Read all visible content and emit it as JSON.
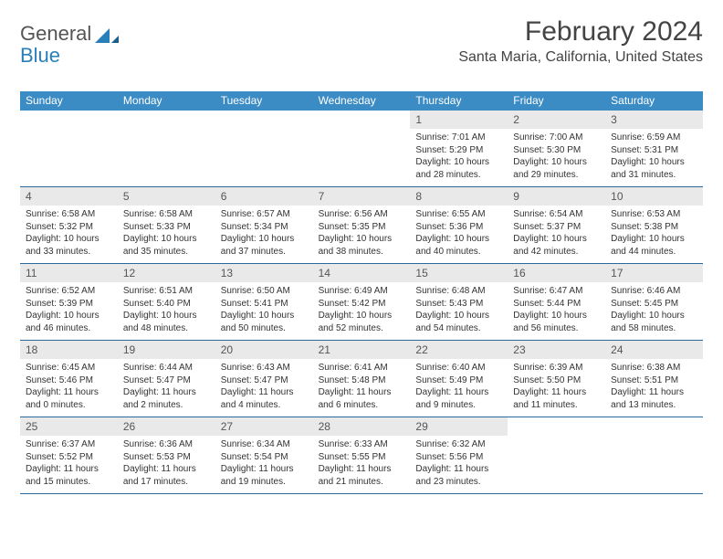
{
  "logo": {
    "text1": "General",
    "text2": "Blue"
  },
  "title": "February 2024",
  "location": "Santa Maria, California, United States",
  "colors": {
    "header_bg": "#3b8bc4",
    "header_fg": "#ffffff",
    "day_number_bg": "#e9e9e9",
    "week_border": "#2a6a9a",
    "logo_gray": "#555555",
    "logo_blue": "#2a7fba"
  },
  "day_headers": [
    "Sunday",
    "Monday",
    "Tuesday",
    "Wednesday",
    "Thursday",
    "Friday",
    "Saturday"
  ],
  "weeks": [
    [
      null,
      null,
      null,
      null,
      {
        "n": "1",
        "sunrise": "7:01 AM",
        "sunset": "5:29 PM",
        "daylight": "10 hours and 28 minutes."
      },
      {
        "n": "2",
        "sunrise": "7:00 AM",
        "sunset": "5:30 PM",
        "daylight": "10 hours and 29 minutes."
      },
      {
        "n": "3",
        "sunrise": "6:59 AM",
        "sunset": "5:31 PM",
        "daylight": "10 hours and 31 minutes."
      }
    ],
    [
      {
        "n": "4",
        "sunrise": "6:58 AM",
        "sunset": "5:32 PM",
        "daylight": "10 hours and 33 minutes."
      },
      {
        "n": "5",
        "sunrise": "6:58 AM",
        "sunset": "5:33 PM",
        "daylight": "10 hours and 35 minutes."
      },
      {
        "n": "6",
        "sunrise": "6:57 AM",
        "sunset": "5:34 PM",
        "daylight": "10 hours and 37 minutes."
      },
      {
        "n": "7",
        "sunrise": "6:56 AM",
        "sunset": "5:35 PM",
        "daylight": "10 hours and 38 minutes."
      },
      {
        "n": "8",
        "sunrise": "6:55 AM",
        "sunset": "5:36 PM",
        "daylight": "10 hours and 40 minutes."
      },
      {
        "n": "9",
        "sunrise": "6:54 AM",
        "sunset": "5:37 PM",
        "daylight": "10 hours and 42 minutes."
      },
      {
        "n": "10",
        "sunrise": "6:53 AM",
        "sunset": "5:38 PM",
        "daylight": "10 hours and 44 minutes."
      }
    ],
    [
      {
        "n": "11",
        "sunrise": "6:52 AM",
        "sunset": "5:39 PM",
        "daylight": "10 hours and 46 minutes."
      },
      {
        "n": "12",
        "sunrise": "6:51 AM",
        "sunset": "5:40 PM",
        "daylight": "10 hours and 48 minutes."
      },
      {
        "n": "13",
        "sunrise": "6:50 AM",
        "sunset": "5:41 PM",
        "daylight": "10 hours and 50 minutes."
      },
      {
        "n": "14",
        "sunrise": "6:49 AM",
        "sunset": "5:42 PM",
        "daylight": "10 hours and 52 minutes."
      },
      {
        "n": "15",
        "sunrise": "6:48 AM",
        "sunset": "5:43 PM",
        "daylight": "10 hours and 54 minutes."
      },
      {
        "n": "16",
        "sunrise": "6:47 AM",
        "sunset": "5:44 PM",
        "daylight": "10 hours and 56 minutes."
      },
      {
        "n": "17",
        "sunrise": "6:46 AM",
        "sunset": "5:45 PM",
        "daylight": "10 hours and 58 minutes."
      }
    ],
    [
      {
        "n": "18",
        "sunrise": "6:45 AM",
        "sunset": "5:46 PM",
        "daylight": "11 hours and 0 minutes."
      },
      {
        "n": "19",
        "sunrise": "6:44 AM",
        "sunset": "5:47 PM",
        "daylight": "11 hours and 2 minutes."
      },
      {
        "n": "20",
        "sunrise": "6:43 AM",
        "sunset": "5:47 PM",
        "daylight": "11 hours and 4 minutes."
      },
      {
        "n": "21",
        "sunrise": "6:41 AM",
        "sunset": "5:48 PM",
        "daylight": "11 hours and 6 minutes."
      },
      {
        "n": "22",
        "sunrise": "6:40 AM",
        "sunset": "5:49 PM",
        "daylight": "11 hours and 9 minutes."
      },
      {
        "n": "23",
        "sunrise": "6:39 AM",
        "sunset": "5:50 PM",
        "daylight": "11 hours and 11 minutes."
      },
      {
        "n": "24",
        "sunrise": "6:38 AM",
        "sunset": "5:51 PM",
        "daylight": "11 hours and 13 minutes."
      }
    ],
    [
      {
        "n": "25",
        "sunrise": "6:37 AM",
        "sunset": "5:52 PM",
        "daylight": "11 hours and 15 minutes."
      },
      {
        "n": "26",
        "sunrise": "6:36 AM",
        "sunset": "5:53 PM",
        "daylight": "11 hours and 17 minutes."
      },
      {
        "n": "27",
        "sunrise": "6:34 AM",
        "sunset": "5:54 PM",
        "daylight": "11 hours and 19 minutes."
      },
      {
        "n": "28",
        "sunrise": "6:33 AM",
        "sunset": "5:55 PM",
        "daylight": "11 hours and 21 minutes."
      },
      {
        "n": "29",
        "sunrise": "6:32 AM",
        "sunset": "5:56 PM",
        "daylight": "11 hours and 23 minutes."
      },
      null,
      null
    ]
  ],
  "labels": {
    "sunrise": "Sunrise:",
    "sunset": "Sunset:",
    "daylight": "Daylight:"
  }
}
